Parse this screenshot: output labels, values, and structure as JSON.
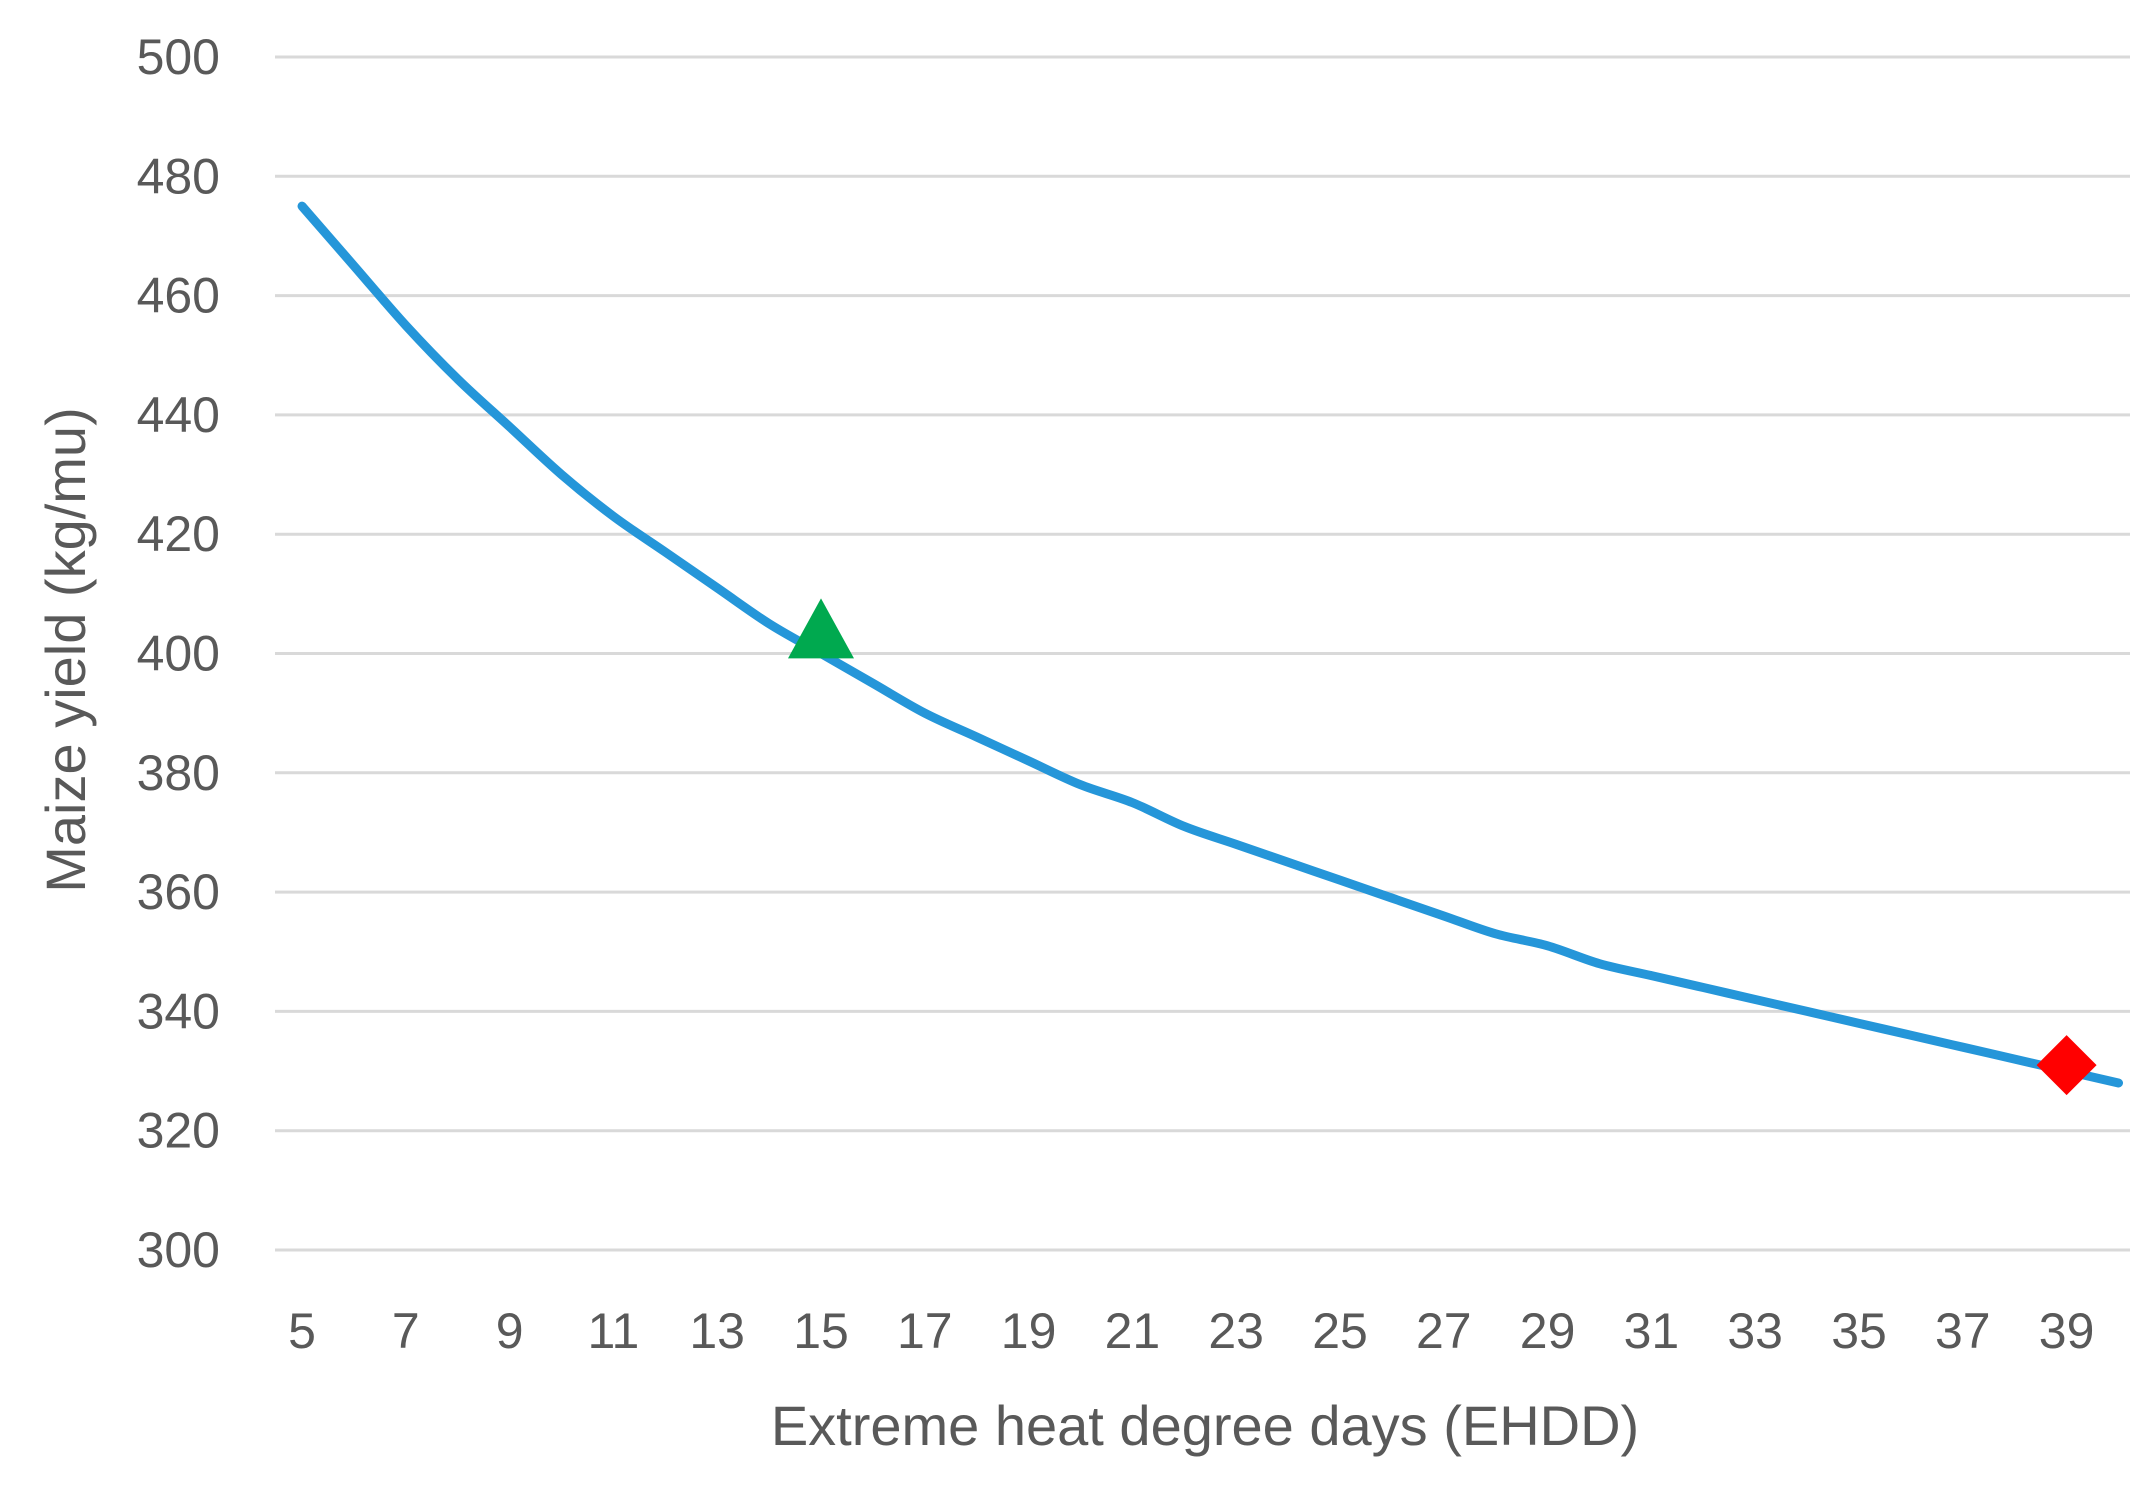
{
  "chart_data": {
    "type": "line",
    "title": "",
    "xlabel": "Extreme heat degree days (EHDD)",
    "ylabel": "Maize yield (kg/mu)",
    "xlim": [
      5,
      40
    ],
    "ylim": [
      300,
      500
    ],
    "x_ticks": [
      "5",
      "7",
      "9",
      "11",
      "13",
      "15",
      "17",
      "19",
      "21",
      "23",
      "25",
      "27",
      "29",
      "31",
      "33",
      "35",
      "37",
      "39"
    ],
    "y_ticks": [
      "300",
      "320",
      "340",
      "360",
      "380",
      "400",
      "420",
      "440",
      "460",
      "480",
      "500"
    ],
    "grid": true,
    "legend": "none",
    "series": [
      {
        "color": "#2596d9",
        "x": [
          5,
          6,
          7,
          8,
          9,
          10,
          11,
          12,
          13,
          14,
          15,
          16,
          17,
          18,
          19,
          20,
          21,
          22,
          23,
          24,
          25,
          26,
          27,
          28,
          29,
          30,
          31,
          32,
          33,
          34,
          35,
          36,
          37,
          38,
          39,
          40
        ],
        "y": [
          475,
          465,
          455,
          446,
          438,
          430,
          423,
          417,
          411,
          405,
          400,
          395,
          390,
          386,
          382,
          378,
          375,
          371,
          368,
          365,
          362,
          359,
          356,
          353,
          351,
          348,
          346,
          344,
          342,
          340,
          338,
          336,
          334,
          332,
          330,
          328
        ]
      }
    ],
    "markers": [
      {
        "shape": "triangle",
        "color": "#00a94f",
        "x": 15,
        "y": 403
      },
      {
        "shape": "diamond",
        "color": "#ff0000",
        "x": 39,
        "y": 331
      }
    ]
  }
}
